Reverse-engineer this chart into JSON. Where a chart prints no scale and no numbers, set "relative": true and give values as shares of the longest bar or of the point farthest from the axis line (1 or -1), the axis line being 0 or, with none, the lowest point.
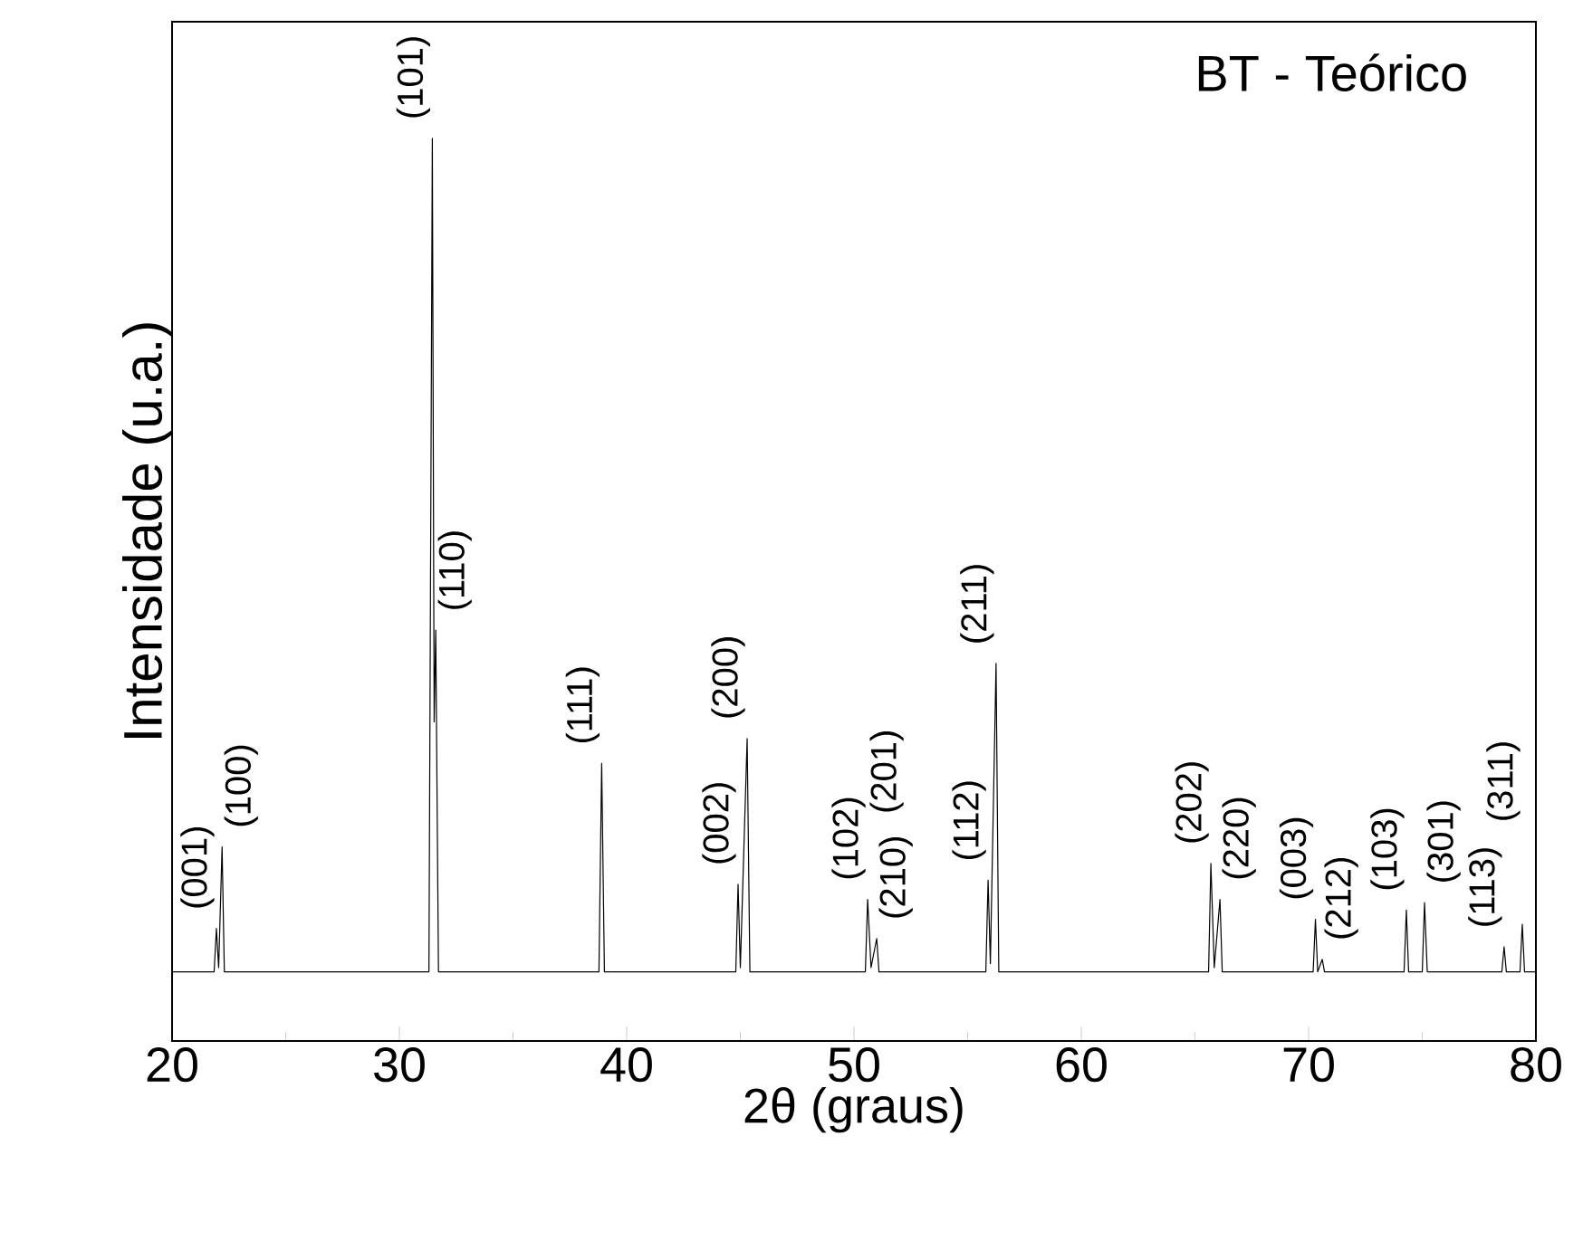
{
  "chart_data": {
    "type": "line",
    "title": "BT - Teórico",
    "xlabel": "2θ (graus)",
    "ylabel": "Intensidade (u.a.)",
    "relative": true,
    "color": "#000000",
    "xlim": [
      20,
      80
    ],
    "xticks": [
      20,
      30,
      40,
      50,
      60,
      70,
      80
    ],
    "x": [
      20,
      21.85,
      21.95,
      22.05,
      22.2,
      22.3,
      31.3,
      31.45,
      31.53,
      31.6,
      31.72,
      38.78,
      38.9,
      39.02,
      44.8,
      44.9,
      45.0,
      45.3,
      45.42,
      50.5,
      50.6,
      50.75,
      51.0,
      51.1,
      55.8,
      55.9,
      56.0,
      56.25,
      56.37,
      65.6,
      65.7,
      65.85,
      66.1,
      66.2,
      70.2,
      70.3,
      70.4,
      70.6,
      70.7,
      74.2,
      74.3,
      74.4,
      75.0,
      75.1,
      75.22,
      78.5,
      78.6,
      78.7,
      79.3,
      79.4,
      79.5,
      80
    ],
    "values": [
      0,
      0,
      0.052,
      0.005,
      0.15,
      0,
      0,
      1,
      0.3,
      0.41,
      0,
      0,
      0.25,
      0,
      0,
      0.105,
      0.005,
      0.28,
      0,
      0,
      0.087,
      0.005,
      0.04,
      0,
      0,
      0.11,
      0.01,
      0.37,
      0,
      0,
      0.13,
      0.005,
      0.087,
      0,
      0,
      0.063,
      0,
      0.015,
      0,
      0,
      0.074,
      0,
      0,
      0.083,
      0,
      0,
      0.03,
      0,
      0,
      0.057,
      0,
      0
    ],
    "annotations": [
      {
        "text": "(001)",
        "x": 21.95,
        "y": 0.052
      },
      {
        "text": "(100)",
        "x": 22.2,
        "y": 0.15
      },
      {
        "text": "(101)",
        "x": 31.45,
        "y": 1
      },
      {
        "text": "(110)",
        "x": 31.6,
        "y": 0.41
      },
      {
        "text": "(111)",
        "x": 38.9,
        "y": 0.25
      },
      {
        "text": "(002)",
        "x": 44.9,
        "y": 0.105
      },
      {
        "text": "(200)",
        "x": 45.3,
        "y": 0.28
      },
      {
        "text": "(102)",
        "x": 50.6,
        "y": 0.087
      },
      {
        "text": "(201)",
        "x": 50.6,
        "y": 0.087
      },
      {
        "text": "(210)",
        "x": 51.0,
        "y": 0.04
      },
      {
        "text": "(112)",
        "x": 55.9,
        "y": 0.11
      },
      {
        "text": "(211)",
        "x": 56.25,
        "y": 0.37
      },
      {
        "text": "(202)",
        "x": 65.7,
        "y": 0.13
      },
      {
        "text": "(220)",
        "x": 66.1,
        "y": 0.087
      },
      {
        "text": "(003)",
        "x": 70.3,
        "y": 0.063
      },
      {
        "text": "(212)",
        "x": 70.6,
        "y": 0.015
      },
      {
        "text": "(103)",
        "x": 74.3,
        "y": 0.074
      },
      {
        "text": "(301)",
        "x": 75.1,
        "y": 0.083
      },
      {
        "text": "(113)",
        "x": 78.6,
        "y": 0.03
      },
      {
        "text": "(311)",
        "x": 79.4,
        "y": 0.057
      }
    ]
  }
}
